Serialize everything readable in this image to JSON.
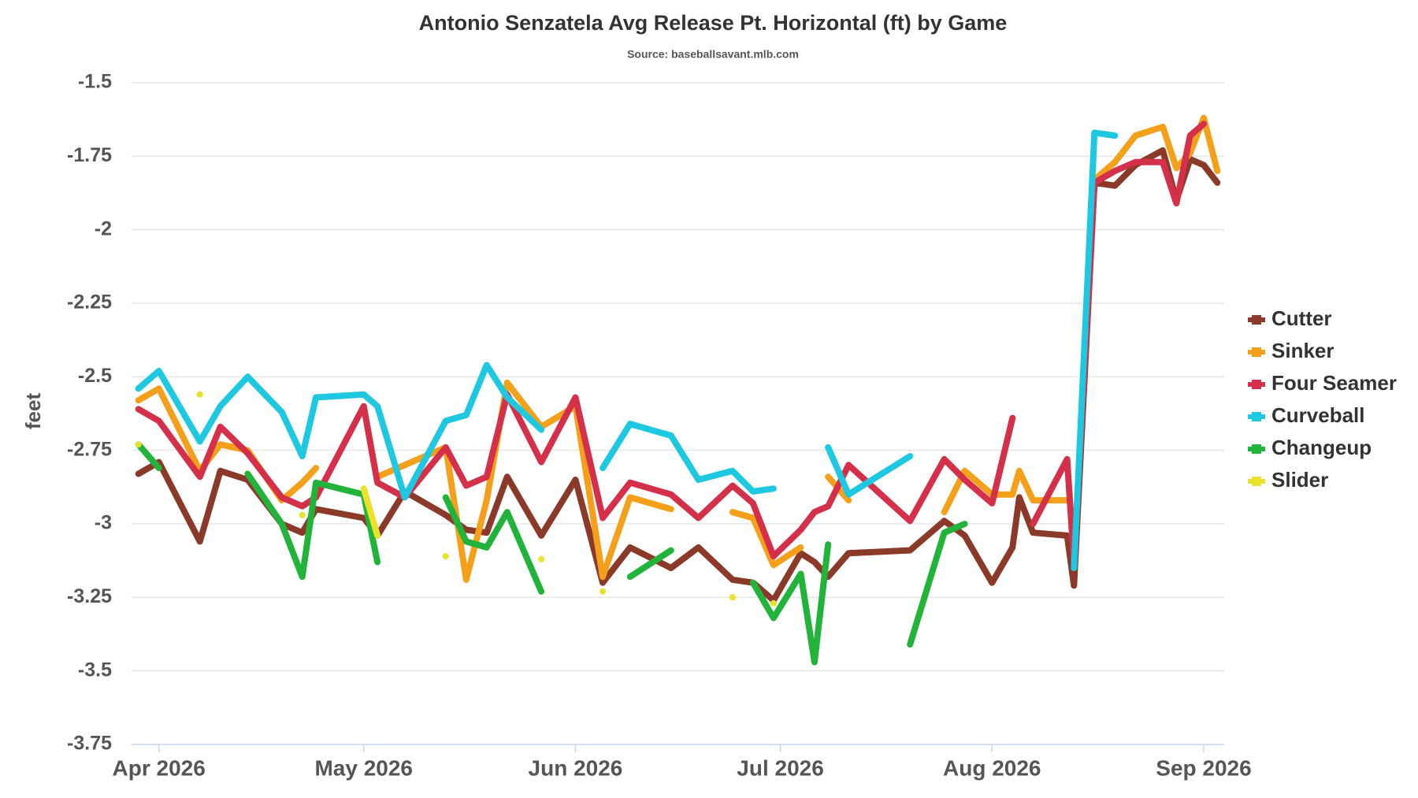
{
  "chart_data": {
    "type": "line",
    "title": "Antonio Senzatela Avg Release Pt. Horizontal (ft) by Game",
    "subtitle": "Source: baseballsavant.mlb.com",
    "y_label": "feet",
    "x": [
      88,
      91,
      97,
      100,
      104,
      109,
      112,
      114,
      121,
      123,
      127,
      133,
      136,
      139,
      142,
      147,
      152,
      156,
      160,
      166,
      170,
      175,
      178,
      181,
      185,
      187,
      189,
      192,
      201,
      206,
      209,
      213,
      216,
      217,
      219,
      224,
      225,
      228,
      231,
      234,
      238,
      240,
      242,
      244,
      246
    ],
    "xlim": [
      87,
      247
    ],
    "xticks": [
      {
        "value": 91,
        "label": "Apr 2026"
      },
      {
        "value": 121,
        "label": "May 2026"
      },
      {
        "value": 152,
        "label": "Jun 2026"
      },
      {
        "value": 182,
        "label": "Jul 2026"
      },
      {
        "value": 213,
        "label": "Aug 2026"
      },
      {
        "value": 244,
        "label": "Sep 2026"
      }
    ],
    "ylim": [
      -3.75,
      -1.5
    ],
    "yticks": [
      -3.75,
      -3.5,
      -3.25,
      -3,
      -2.75,
      -2.5,
      -2.25,
      -2,
      -1.75,
      -1.5
    ],
    "grid": true,
    "legend": "right",
    "series": [
      {
        "name": "Cutter",
        "color": "#8b3a2a",
        "values": [
          -2.83,
          -2.79,
          -3.06,
          -2.82,
          -2.85,
          -3.0,
          -3.03,
          -2.95,
          -2.98,
          -3.04,
          -2.89,
          -2.97,
          -3.02,
          -3.03,
          -2.84,
          -3.04,
          -2.85,
          -3.2,
          -3.08,
          -3.15,
          -3.08,
          -3.19,
          -3.2,
          -3.26,
          -3.1,
          -3.13,
          -3.18,
          -3.1,
          -3.09,
          -2.99,
          -3.04,
          -3.2,
          -3.08,
          -2.91,
          -3.03,
          -3.04,
          -3.21,
          -1.84,
          -1.85,
          -1.78,
          -1.73,
          -1.9,
          -1.76,
          -1.78,
          -1.84
        ]
      },
      {
        "name": "Sinker",
        "color": "#f5a01a",
        "values": [
          -2.58,
          -2.54,
          -2.82,
          -2.73,
          -2.75,
          -2.92,
          -2.86,
          -2.81,
          null,
          -2.84,
          -2.8,
          -2.74,
          -3.19,
          -2.92,
          -2.52,
          -2.67,
          -2.6,
          -3.18,
          -2.91,
          -2.95,
          null,
          -2.96,
          -2.98,
          -3.14,
          -3.08,
          null,
          -2.84,
          -2.92,
          null,
          -2.96,
          -2.82,
          -2.9,
          -2.9,
          -2.82,
          -2.92,
          -2.92,
          null,
          -1.83,
          -1.77,
          -1.68,
          -1.65,
          -1.79,
          -1.74,
          -1.62,
          -1.8
        ]
      },
      {
        "name": "Four Seamer",
        "color": "#d4304a",
        "values": [
          -2.61,
          -2.65,
          -2.84,
          -2.67,
          -2.76,
          -2.91,
          -2.94,
          -2.91,
          -2.6,
          -2.86,
          -2.91,
          -2.74,
          -2.87,
          -2.84,
          -2.56,
          -2.79,
          -2.57,
          -2.98,
          -2.86,
          -2.9,
          -2.98,
          -2.87,
          -2.93,
          -3.11,
          -3.02,
          -2.96,
          -2.94,
          -2.8,
          -2.99,
          -2.78,
          -2.85,
          -2.93,
          -2.64,
          null,
          -3.0,
          -2.78,
          -3.13,
          -1.84,
          -1.8,
          -1.77,
          -1.77,
          -1.91,
          -1.68,
          -1.64,
          null
        ]
      },
      {
        "name": "Curveball",
        "color": "#1ec8e0",
        "values": [
          -2.54,
          -2.48,
          -2.72,
          -2.6,
          -2.5,
          -2.62,
          -2.77,
          -2.57,
          -2.56,
          -2.6,
          -2.91,
          -2.65,
          -2.63,
          -2.46,
          -2.57,
          -2.68,
          null,
          -2.81,
          -2.66,
          -2.7,
          -2.85,
          -2.82,
          -2.89,
          -2.88,
          null,
          null,
          -2.74,
          -2.9,
          -2.77,
          null,
          null,
          null,
          null,
          null,
          null,
          null,
          -3.15,
          -1.67,
          -1.68,
          null,
          null,
          null,
          null,
          null,
          null
        ]
      },
      {
        "name": "Changeup",
        "color": "#22b43a",
        "values": [
          -2.73,
          -2.81,
          null,
          null,
          -2.83,
          -3.0,
          -3.18,
          -2.86,
          -2.9,
          -3.13,
          null,
          -2.91,
          -3.06,
          -3.08,
          -2.96,
          -3.23,
          null,
          null,
          -3.18,
          -3.09,
          null,
          null,
          -3.2,
          -3.32,
          -3.17,
          -3.47,
          -3.07,
          null,
          -3.41,
          -3.03,
          -3.0,
          null,
          null,
          null,
          null,
          null,
          null,
          null,
          null,
          null,
          null,
          null,
          null,
          null,
          null
        ]
      },
      {
        "name": "Slider",
        "color": "#e8e22a",
        "values": [
          -2.73,
          null,
          -2.56,
          null,
          null,
          null,
          -2.97,
          null,
          -2.88,
          -3.04,
          null,
          -3.11,
          null,
          null,
          null,
          -3.12,
          null,
          -3.23,
          null,
          null,
          null,
          -3.25,
          null,
          -3.27,
          null,
          null,
          null,
          null,
          null,
          null,
          null,
          null,
          null,
          null,
          null,
          null,
          null,
          null,
          null,
          null,
          null,
          null,
          null,
          null,
          null
        ]
      }
    ]
  }
}
